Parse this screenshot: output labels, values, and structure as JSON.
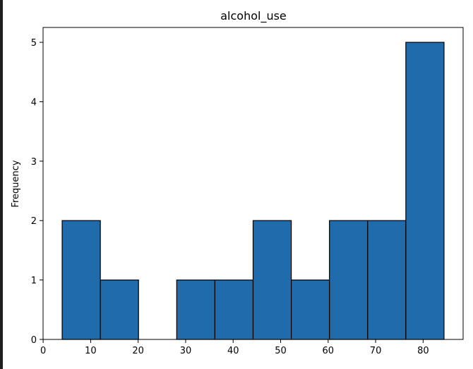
{
  "chart_data": {
    "type": "bar",
    "title": "alcohol_use",
    "xlabel": "",
    "ylabel": "Frequency",
    "bin_edges": [
      4,
      12.04,
      20.08,
      28.12,
      36.16,
      44.2,
      52.24,
      60.28,
      68.32,
      76.36,
      84.4
    ],
    "values": [
      2,
      1,
      0,
      1,
      1,
      2,
      1,
      2,
      2,
      5
    ],
    "xlim": [
      -0.02,
      88.42
    ],
    "ylim": [
      0,
      5.25
    ],
    "xticks": [
      0,
      10,
      20,
      30,
      40,
      50,
      60,
      70,
      80
    ],
    "yticks": [
      0,
      1,
      2,
      3,
      4,
      5
    ],
    "bar_color": "#1f6bab",
    "edge_color": "#000000",
    "grid": false,
    "legend": "none"
  }
}
